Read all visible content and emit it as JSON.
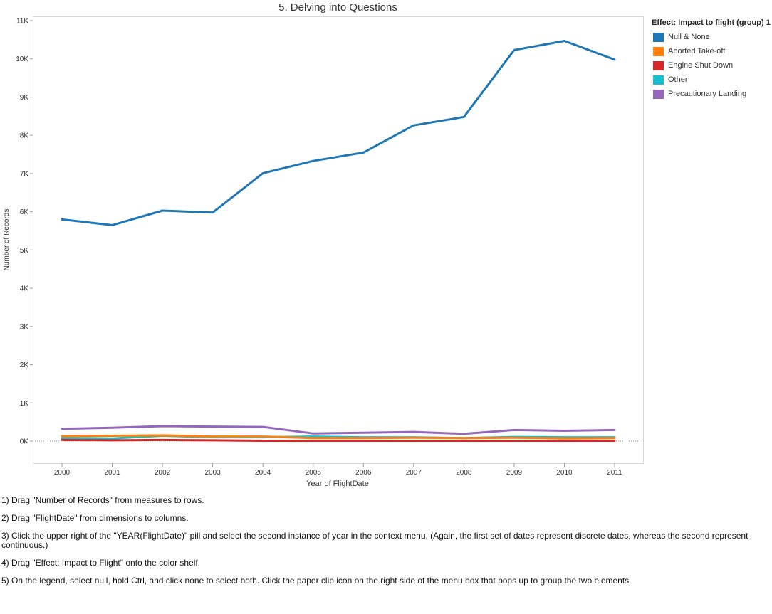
{
  "chart_data": {
    "type": "line",
    "title": "5. Delving into Questions",
    "xlabel": "Year of FlightDate",
    "ylabel": "Number of Records",
    "x": [
      "2000",
      "2001",
      "2002",
      "2003",
      "2004",
      "2005",
      "2006",
      "2007",
      "2008",
      "2009",
      "2010",
      "2011"
    ],
    "ylim": [
      -500,
      11000
    ],
    "yticks": [
      0,
      1000,
      2000,
      3000,
      4000,
      5000,
      6000,
      7000,
      8000,
      9000,
      10000,
      11000
    ],
    "ytick_labels": [
      "0K",
      "1K",
      "2K",
      "3K",
      "4K",
      "5K",
      "6K",
      "7K",
      "8K",
      "9K",
      "10K",
      "11K"
    ],
    "grid": false,
    "legend_position": "right",
    "legend_title": "Effect: Impact to flight (group) 1",
    "series": [
      {
        "name": "Null & None",
        "color": "#1f77b4",
        "values": [
          5800,
          5650,
          6030,
          5980,
          7010,
          7330,
          7550,
          8260,
          8480,
          10230,
          10470,
          9980
        ]
      },
      {
        "name": "Aborted Take-off",
        "color": "#ff7f0e",
        "values": [
          130,
          140,
          150,
          120,
          120,
          80,
          80,
          90,
          80,
          90,
          70,
          80
        ]
      },
      {
        "name": "Engine Shut Down",
        "color": "#d62728",
        "values": [
          30,
          20,
          30,
          20,
          10,
          10,
          10,
          10,
          10,
          10,
          10,
          10
        ]
      },
      {
        "name": "Other",
        "color": "#17becf",
        "values": [
          80,
          70,
          140,
          100,
          100,
          120,
          100,
          100,
          80,
          110,
          100,
          100
        ]
      },
      {
        "name": "Precautionary Landing",
        "color": "#9467bd",
        "values": [
          320,
          350,
          390,
          380,
          370,
          200,
          220,
          240,
          190,
          290,
          270,
          290
        ]
      }
    ]
  },
  "notes": [
    "1) Drag \"Number of Records\" from measures to rows.",
    "2) Drag \"FlightDate\" from dimensions to columns.",
    "3) Click the upper right of the \"YEAR(FlightDate)\" pill and select the second instance of year in the context menu. (Again, the first set of dates represent discrete dates, whereas the second represent continuous.)",
    "4) Drag \"Effect: Impact to Flight\" onto the color shelf.",
    "5) On the legend, select null, hold Ctrl, and click none to select both. Click the paper clip icon on the right side of the menu box that pops up to group the two elements."
  ]
}
